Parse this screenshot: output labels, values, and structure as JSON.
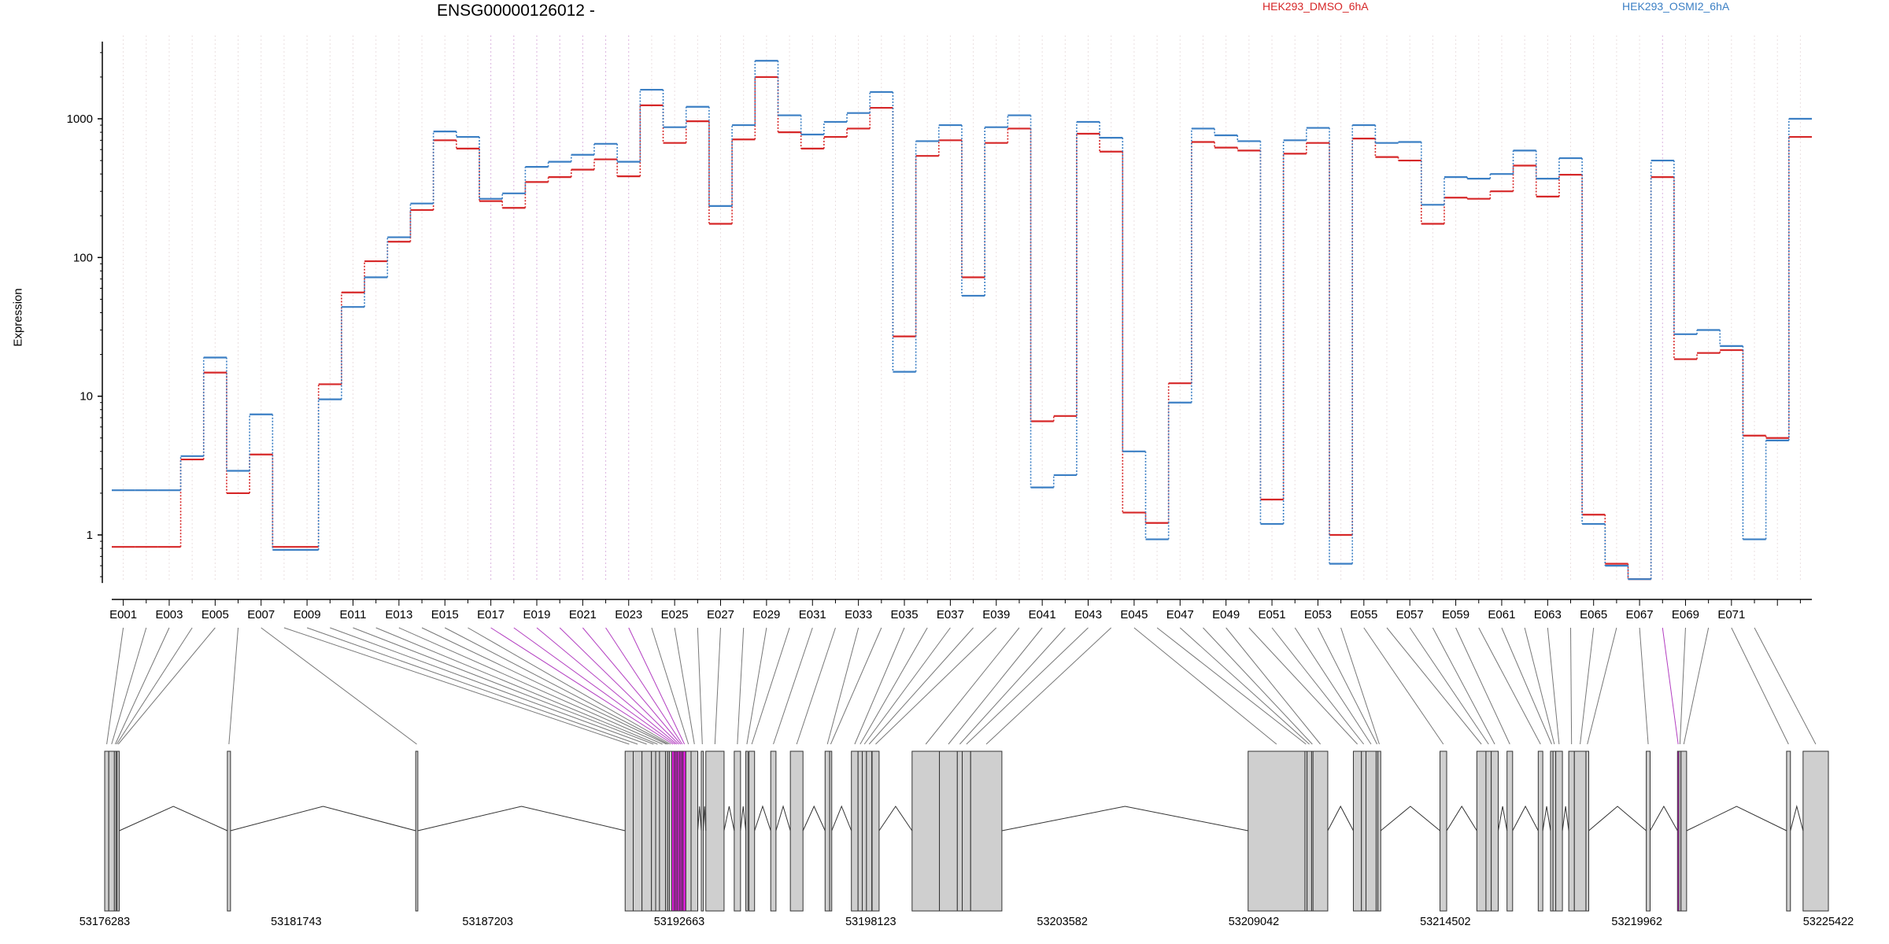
{
  "chart_data": {
    "type": "line",
    "title": "ENSG00000126012 -",
    "xlabel": "",
    "ylabel": "Expression",
    "yscale": "log",
    "ylim": [
      0.45,
      3600
    ],
    "yticks": [
      "1",
      "10",
      "100",
      "1000"
    ],
    "grid": "vertical dotted lines, one per exon",
    "legend_position": "top",
    "exon_labels": [
      "E001",
      "E003",
      "E005",
      "E007",
      "E009",
      "E011",
      "E013",
      "E015",
      "E017",
      "E019",
      "E021",
      "E023",
      "E025",
      "E027",
      "E029",
      "E031",
      "E033",
      "E035",
      "E037",
      "E039",
      "E041",
      "E043",
      "E045",
      "E047",
      "E049",
      "E051",
      "E053",
      "E055",
      "E057",
      "E059",
      "E061",
      "E063",
      "E065",
      "E067",
      "E069",
      "E071"
    ],
    "series": [
      {
        "name": "HEK293_DMSO_6hA",
        "color": "#d62728",
        "values": [
          0.82,
          0.82,
          0.82,
          3.5,
          14.8,
          2.0,
          3.8,
          0.82,
          0.82,
          12.2,
          56,
          94,
          130,
          220,
          700,
          610,
          255,
          228,
          350,
          380,
          430,
          510,
          385,
          1250,
          670,
          960,
          175,
          710,
          2000,
          800,
          610,
          740,
          850,
          1200,
          27,
          540,
          700,
          72,
          670,
          850,
          6.6,
          7.2,
          780,
          580,
          1.45,
          1.22,
          12.4,
          680,
          620,
          590,
          1.8,
          560,
          670,
          1.0,
          720,
          530,
          500,
          175,
          270,
          265,
          300,
          460,
          275,
          395,
          1.4,
          0.62,
          0.48,
          380,
          18.5,
          20.5,
          21.5,
          5.2,
          5.0,
          740
        ]
      },
      {
        "name": "HEK293_OSMI2_6hA",
        "color": "#3b7fc4",
        "values": [
          2.1,
          2.1,
          2.1,
          3.7,
          19.0,
          2.9,
          7.4,
          0.78,
          0.78,
          9.5,
          44,
          72,
          140,
          245,
          810,
          740,
          265,
          290,
          450,
          490,
          550,
          660,
          490,
          1620,
          870,
          1220,
          235,
          900,
          2620,
          1060,
          770,
          950,
          1100,
          1560,
          15,
          690,
          900,
          53,
          870,
          1060,
          2.2,
          2.7,
          950,
          730,
          4.0,
          0.93,
          9.0,
          850,
          760,
          690,
          1.2,
          700,
          860,
          0.62,
          900,
          670,
          680,
          240,
          380,
          370,
          400,
          590,
          370,
          520,
          1.2,
          0.6,
          0.48,
          500,
          28,
          30,
          23,
          0.93,
          4.8,
          1000
        ]
      }
    ],
    "purple_exons": [
      16,
      17,
      18,
      19,
      20,
      21,
      22,
      67
    ],
    "gene_model": {
      "coordinate_labels": [
        "53176283",
        "53181743",
        "53187203",
        "53192663",
        "53198123",
        "53203582",
        "53209042",
        "53214502",
        "53219962",
        "53225422"
      ],
      "domain": [
        53176283,
        53225422
      ],
      "highlight_color": "#e91ee6",
      "exons": [
        [
          53176283,
          53176400
        ],
        [
          53176400,
          53176560
        ],
        [
          53176560,
          53176610
        ],
        [
          53176610,
          53176640
        ],
        [
          53176640,
          53176700
        ],
        [
          53179780,
          53179870
        ],
        [
          53185150,
          53185210
        ],
        [
          53191120,
          53191350
        ],
        [
          53191350,
          53191600
        ],
        [
          53191600,
          53191870
        ],
        [
          53191870,
          53191990
        ],
        [
          53191990,
          53192100
        ],
        [
          53192100,
          53192270
        ],
        [
          53192270,
          53192330
        ],
        [
          53192330,
          53192380
        ],
        [
          53192380,
          53192450
        ],
        [
          53192450,
          53192520
        ],
        [
          53192520,
          53192570
        ],
        [
          53192570,
          53192620
        ],
        [
          53192620,
          53192680
        ],
        [
          53192680,
          53192730
        ],
        [
          53192730,
          53192770
        ],
        [
          53192770,
          53192850
        ],
        [
          53192850,
          53193000
        ],
        [
          53193000,
          53193190
        ],
        [
          53193290,
          53193350
        ],
        [
          53193420,
          53193940
        ],
        [
          53194230,
          53194410
        ],
        [
          53194560,
          53194620
        ],
        [
          53194650,
          53194810
        ],
        [
          53195270,
          53195420
        ],
        [
          53195830,
          53196190
        ],
        [
          53196820,
          53196950
        ],
        [
          53196950,
          53197010
        ],
        [
          53197570,
          53197760
        ],
        [
          53197760,
          53197880
        ],
        [
          53197880,
          53198000
        ],
        [
          53198000,
          53198150
        ],
        [
          53198160,
          53198360
        ],
        [
          53199300,
          53200080
        ],
        [
          53200080,
          53200590
        ],
        [
          53200590,
          53200730
        ],
        [
          53200730,
          53200970
        ],
        [
          53200970,
          53201860
        ],
        [
          53208880,
          53210500
        ],
        [
          53210500,
          53210560
        ],
        [
          53210560,
          53210690
        ],
        [
          53210690,
          53210730
        ],
        [
          53210730,
          53211150
        ],
        [
          53211880,
          53212110
        ],
        [
          53212110,
          53212240
        ],
        [
          53212240,
          53212530
        ],
        [
          53212530,
          53212580
        ],
        [
          53212580,
          53212660
        ],
        [
          53214350,
          53214540
        ],
        [
          53215400,
          53215660
        ],
        [
          53215660,
          53215810
        ],
        [
          53215810,
          53216010
        ],
        [
          53216260,
          53216420
        ],
        [
          53217150,
          53217280
        ],
        [
          53217500,
          53217570
        ],
        [
          53217570,
          53217650
        ],
        [
          53217650,
          53217840
        ],
        [
          53218020,
          53218180
        ],
        [
          53218180,
          53218510
        ],
        [
          53218510,
          53218590
        ],
        [
          53220230,
          53220340
        ],
        [
          53221120,
          53221160
        ],
        [
          53221160,
          53221220
        ],
        [
          53221220,
          53221380
        ],
        [
          53224230,
          53224340
        ],
        [
          53224700,
          53225422
        ]
      ]
    }
  }
}
